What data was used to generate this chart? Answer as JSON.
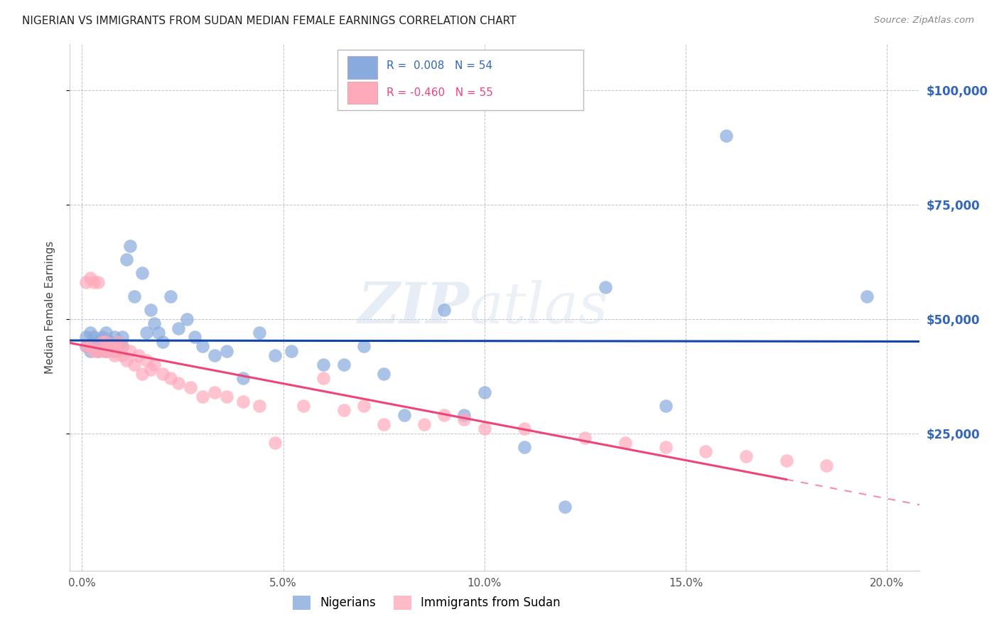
{
  "title": "NIGERIAN VS IMMIGRANTS FROM SUDAN MEDIAN FEMALE EARNINGS CORRELATION CHART",
  "source": "Source: ZipAtlas.com",
  "ylabel": "Median Female Earnings",
  "xlabel_ticks": [
    "0.0%",
    "5.0%",
    "10.0%",
    "15.0%",
    "20.0%"
  ],
  "xlabel_vals": [
    0.0,
    0.05,
    0.1,
    0.15,
    0.2
  ],
  "ytick_labels": [
    "$100,000",
    "$75,000",
    "$50,000",
    "$25,000"
  ],
  "ytick_vals": [
    100000,
    75000,
    50000,
    25000
  ],
  "ylim": [
    -5000,
    110000
  ],
  "xlim": [
    -0.003,
    0.208
  ],
  "watermark_zip": "ZIP",
  "watermark_atlas": "atlas",
  "blue_color": "#88AADD",
  "pink_color": "#FFAABB",
  "line_blue": "#1144AA",
  "line_pink": "#EE4477",
  "background": "#FFFFFF",
  "grid_color": "#BBBBCC",
  "title_color": "#222222",
  "axis_label_color": "#444444",
  "tick_color_right": "#3366BB",
  "nigerians_x": [
    0.001,
    0.001,
    0.002,
    0.002,
    0.003,
    0.003,
    0.004,
    0.004,
    0.005,
    0.005,
    0.006,
    0.006,
    0.007,
    0.007,
    0.008,
    0.008,
    0.009,
    0.009,
    0.01,
    0.01,
    0.011,
    0.012,
    0.013,
    0.015,
    0.016,
    0.017,
    0.018,
    0.019,
    0.02,
    0.022,
    0.024,
    0.026,
    0.028,
    0.03,
    0.033,
    0.036,
    0.04,
    0.044,
    0.048,
    0.052,
    0.06,
    0.065,
    0.07,
    0.075,
    0.08,
    0.09,
    0.095,
    0.1,
    0.11,
    0.12,
    0.13,
    0.145,
    0.16,
    0.195
  ],
  "nigerians_y": [
    44000,
    46000,
    43000,
    47000,
    44000,
    46000,
    43000,
    45000,
    44000,
    46000,
    43000,
    47000,
    44000,
    45000,
    43000,
    46000,
    44000,
    45000,
    44000,
    46000,
    63000,
    66000,
    55000,
    60000,
    47000,
    52000,
    49000,
    47000,
    45000,
    55000,
    48000,
    50000,
    46000,
    44000,
    42000,
    43000,
    37000,
    47000,
    42000,
    43000,
    40000,
    40000,
    44000,
    38000,
    29000,
    52000,
    29000,
    34000,
    22000,
    9000,
    57000,
    31000,
    90000,
    55000
  ],
  "sudan_x": [
    0.001,
    0.001,
    0.002,
    0.002,
    0.003,
    0.003,
    0.004,
    0.004,
    0.005,
    0.005,
    0.006,
    0.006,
    0.007,
    0.007,
    0.008,
    0.008,
    0.009,
    0.009,
    0.01,
    0.01,
    0.011,
    0.012,
    0.013,
    0.014,
    0.015,
    0.016,
    0.017,
    0.018,
    0.02,
    0.022,
    0.024,
    0.027,
    0.03,
    0.033,
    0.036,
    0.04,
    0.044,
    0.048,
    0.055,
    0.06,
    0.065,
    0.07,
    0.075,
    0.085,
    0.09,
    0.095,
    0.1,
    0.11,
    0.125,
    0.135,
    0.145,
    0.155,
    0.165,
    0.175,
    0.185
  ],
  "sudan_y": [
    44000,
    58000,
    44000,
    59000,
    43000,
    58000,
    43000,
    58000,
    43000,
    45000,
    43000,
    45000,
    43000,
    44000,
    42000,
    44000,
    43000,
    45000,
    42000,
    44000,
    41000,
    43000,
    40000,
    42000,
    38000,
    41000,
    39000,
    40000,
    38000,
    37000,
    36000,
    35000,
    33000,
    34000,
    33000,
    32000,
    31000,
    23000,
    31000,
    37000,
    30000,
    31000,
    27000,
    27000,
    29000,
    28000,
    26000,
    26000,
    24000,
    23000,
    22000,
    21000,
    20000,
    19000,
    18000
  ]
}
